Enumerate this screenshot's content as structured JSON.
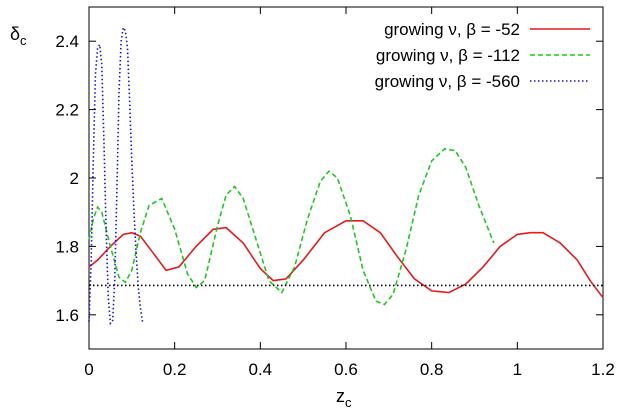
{
  "chart_data": {
    "type": "line",
    "ylabel": "δ",
    "ylabel_sub": "c",
    "xlabel": "z",
    "xlabel_sub": "c",
    "xlim": [
      0,
      1.2
    ],
    "ylim": [
      1.5,
      2.5
    ],
    "x_ticks": [
      "0",
      "0.2",
      "0.4",
      "0.6",
      "0.8",
      "1",
      "1.2"
    ],
    "y_ticks": [
      "1.6",
      "1.8",
      "2",
      "2.2",
      "2.4"
    ],
    "grid": false,
    "legend_position": "top-right",
    "series": [
      {
        "name": "growing ν, β = -52",
        "color": "#e41a1c",
        "style": "solid",
        "x": [
          0.0,
          0.02,
          0.05,
          0.08,
          0.1,
          0.12,
          0.15,
          0.18,
          0.21,
          0.25,
          0.29,
          0.32,
          0.36,
          0.4,
          0.43,
          0.46,
          0.5,
          0.55,
          0.6,
          0.64,
          0.68,
          0.72,
          0.76,
          0.8,
          0.84,
          0.88,
          0.92,
          0.96,
          1.0,
          1.03,
          1.06,
          1.1,
          1.14,
          1.17,
          1.2
        ],
        "y": [
          1.74,
          1.76,
          1.8,
          1.835,
          1.84,
          1.83,
          1.78,
          1.73,
          1.74,
          1.8,
          1.85,
          1.855,
          1.81,
          1.735,
          1.7,
          1.705,
          1.76,
          1.84,
          1.875,
          1.875,
          1.84,
          1.77,
          1.705,
          1.67,
          1.665,
          1.69,
          1.74,
          1.8,
          1.835,
          1.84,
          1.84,
          1.81,
          1.76,
          1.7,
          1.65
        ]
      },
      {
        "name": "growing ν, β = -112",
        "color": "#1ec81e",
        "style": "dashed",
        "x": [
          0.0,
          0.01,
          0.02,
          0.03,
          0.05,
          0.07,
          0.085,
          0.1,
          0.12,
          0.14,
          0.17,
          0.2,
          0.23,
          0.25,
          0.27,
          0.3,
          0.32,
          0.34,
          0.36,
          0.39,
          0.42,
          0.45,
          0.48,
          0.51,
          0.54,
          0.56,
          0.58,
          0.61,
          0.64,
          0.67,
          0.69,
          0.71,
          0.74,
          0.77,
          0.8,
          0.83,
          0.855,
          0.88,
          0.91,
          0.945
        ],
        "y": [
          1.82,
          1.88,
          1.915,
          1.9,
          1.8,
          1.71,
          1.695,
          1.73,
          1.84,
          1.92,
          1.94,
          1.85,
          1.72,
          1.68,
          1.7,
          1.86,
          1.95,
          1.975,
          1.94,
          1.82,
          1.7,
          1.665,
          1.74,
          1.88,
          1.99,
          2.02,
          2.0,
          1.89,
          1.73,
          1.64,
          1.63,
          1.66,
          1.79,
          1.95,
          2.05,
          2.085,
          2.08,
          2.03,
          1.92,
          1.81
        ]
      },
      {
        "name": "growing ν, β = -560",
        "color": "#1414c8",
        "style": "dotted",
        "x": [
          0.0,
          0.005,
          0.01,
          0.015,
          0.02,
          0.025,
          0.03,
          0.035,
          0.04,
          0.045,
          0.05,
          0.055,
          0.06,
          0.065,
          0.07,
          0.075,
          0.08,
          0.085,
          0.09,
          0.095,
          0.1,
          0.105,
          0.11,
          0.115,
          0.12,
          0.125
        ],
        "y": [
          1.58,
          1.75,
          2.05,
          2.3,
          2.38,
          2.39,
          2.33,
          2.1,
          1.85,
          1.65,
          1.575,
          1.58,
          1.7,
          1.95,
          2.25,
          2.4,
          2.44,
          2.43,
          2.38,
          2.22,
          2.05,
          1.9,
          1.78,
          1.68,
          1.62,
          1.58
        ]
      },
      {
        "name": "",
        "color": "#000000",
        "style": "dotted",
        "x": [
          0.0,
          1.2
        ],
        "y": [
          1.686,
          1.686
        ]
      }
    ]
  }
}
